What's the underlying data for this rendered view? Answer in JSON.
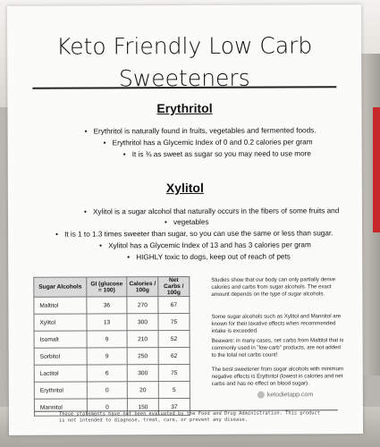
{
  "title_line1": "Keto Friendly Low Carb",
  "title_line2": "Sweeteners",
  "erythritol": {
    "heading": "Erythritol",
    "bullets": [
      "Erythritol is naturally found in fruits, vegetables and fermented foods.",
      "Erythritol has a Glycemic Index of 0 and 0.2 calories per gram",
      "It is ¾ as sweet as sugar so you may need to use more"
    ]
  },
  "xylitol": {
    "heading": "Xylitol",
    "bullets": [
      "Xylitol is a sugar alcohol that naturally occurs in the fibers of some fruits and",
      "vegetables",
      "It is 1 to 1.3 times sweeter than sugar, so you can use the same or less than sugar.",
      "Xylitol has a Glycemic Index of 13 and has 3 calories per gram",
      "HIGHLY toxic to dogs, keep out of reach of pets"
    ]
  },
  "table": {
    "headers": [
      "Sugar Alcohols",
      "GI (glucose = 100)",
      "Calories / 100g",
      "Net Carbs / 100g"
    ],
    "rows": [
      [
        "Maltitol",
        "36",
        "270",
        "67"
      ],
      [
        "Xylitol",
        "13",
        "300",
        "75"
      ],
      [
        "Isomalt",
        "9",
        "210",
        "52"
      ],
      [
        "Sorbitol",
        "9",
        "250",
        "62"
      ],
      [
        "Lactitol",
        "6",
        "300",
        "75"
      ],
      [
        "Erythritol",
        "0",
        "20",
        "5"
      ],
      [
        "Mannitol",
        "0",
        "150",
        "37"
      ]
    ]
  },
  "side_notes": [
    "Studies show that our body can only partially derive calories and carbs from sugar alcohols. The exact amount depends on the type of sugar alcohols.",
    "Some sugar alcohols such as Xylitol and Mannitol are known for their laxative effects when recommended intake is exceeded.",
    "Beaware: in many cases, net carbs from Maltitol that is commonly used in \"low-carb\" products, are not added to the total net carbs count!",
    "The best sweetener from sugar alcohols with minimum negative effects is Erythritol (lowest in calories and net carbs and has no effect on blood sugar)."
  ],
  "logo_text": "ketodietapp.com",
  "footer": "These statements have not been evaluated by the Food and Drug Administration. This product is not intended to diagnose, treat, cure, or prevent any disease."
}
